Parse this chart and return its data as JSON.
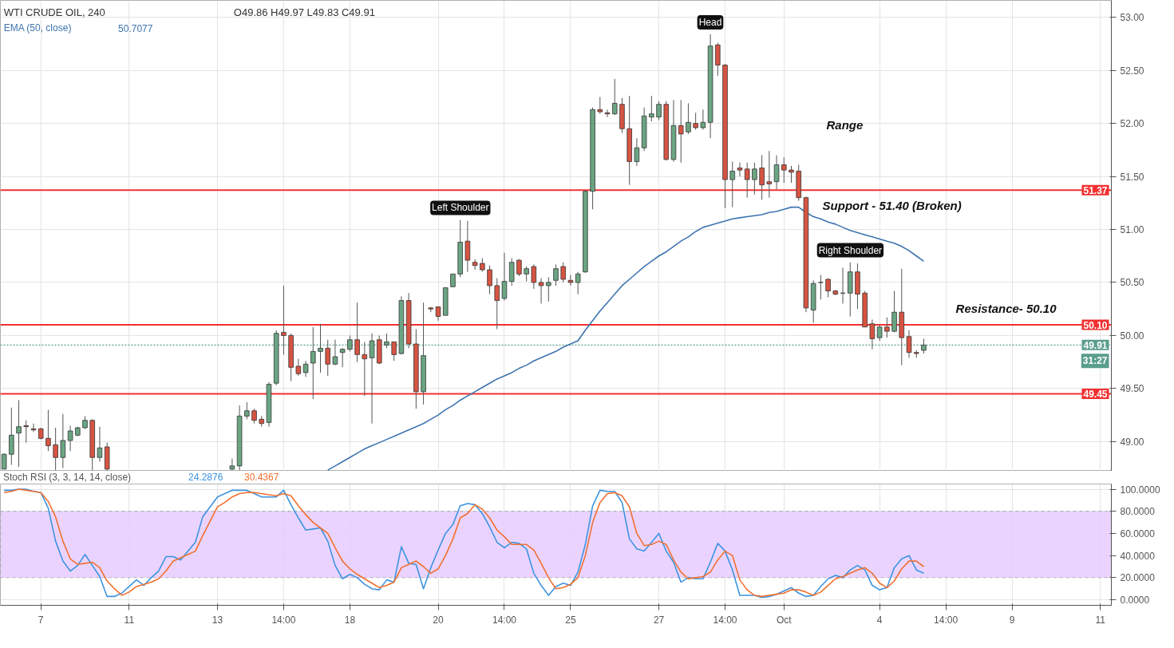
{
  "chart_data": [
    {
      "type": "candlestick",
      "title": "WTI CRUDE OIL, 240",
      "categories": [
        null,
        null,
        null,
        null,
        null,
        null,
        null,
        null,
        null,
        null,
        null,
        null,
        null,
        null,
        null,
        null,
        null,
        null,
        null,
        null,
        null,
        null,
        null,
        null,
        null,
        null,
        null,
        null,
        null,
        null,
        null,
        null,
        null,
        null,
        null,
        null,
        null,
        null,
        null,
        null,
        null,
        null,
        null,
        null,
        null,
        null,
        null,
        null,
        null,
        null,
        null,
        null,
        null,
        null,
        null,
        null,
        null,
        null,
        null,
        null,
        null,
        null,
        null,
        null,
        null,
        null,
        null,
        null,
        null,
        null,
        null,
        null,
        null,
        null,
        null,
        null,
        null,
        null,
        null,
        null,
        null,
        null,
        null,
        null,
        null,
        null,
        null,
        null,
        null,
        null,
        null,
        null,
        null,
        null,
        null,
        null,
        null,
        null,
        null,
        null,
        null,
        null,
        null,
        null,
        null,
        null,
        null,
        null,
        null,
        null,
        null,
        null,
        null,
        null,
        null,
        null,
        null,
        null,
        null,
        null,
        null,
        null,
        null,
        null,
        null,
        null,
        null,
        null,
        null,
        null,
        null,
        null,
        null,
        null,
        null,
        null,
        null,
        null,
        null,
        null,
        null,
        null,
        null,
        null,
        null,
        null,
        null,
        null,
        null,
        null,
        null
      ],
      "ohlc": [
        [
          48.74,
          48.89,
          48.74,
          48.88
        ],
        [
          48.88,
          49.32,
          48.78,
          49.06
        ],
        [
          49.08,
          49.39,
          48.76,
          49.14
        ],
        [
          49.15,
          49.2,
          48.99,
          49.14
        ],
        [
          49.12,
          49.17,
          49.09,
          49.11
        ],
        [
          49.12,
          49.13,
          49.02,
          49.03
        ],
        [
          49.03,
          49.3,
          48.91,
          48.96
        ],
        [
          48.97,
          49.13,
          48.73,
          48.85
        ],
        [
          48.85,
          49.26,
          48.75,
          49.01
        ],
        [
          49.01,
          49.15,
          48.91,
          49.1
        ],
        [
          49.06,
          49.14,
          49.05,
          49.13
        ],
        [
          49.13,
          49.24,
          49.12,
          49.2
        ],
        [
          49.2,
          49.21,
          48.73,
          48.85
        ],
        [
          48.85,
          49.14,
          48.81,
          48.94
        ],
        [
          48.95,
          48.99,
          48.73,
          48.74
        ],
        null,
        null,
        null,
        null,
        null,
        null,
        null,
        null,
        null,
        null,
        null,
        null,
        null,
        null,
        null,
        null,
        [
          48.74,
          48.84,
          48.73,
          48.77
        ],
        [
          48.77,
          49.34,
          48.73,
          49.24
        ],
        [
          49.24,
          49.37,
          49.21,
          49.29
        ],
        [
          49.29,
          49.31,
          49.17,
          49.2
        ],
        [
          49.21,
          49.24,
          49.14,
          49.17
        ],
        [
          49.18,
          49.56,
          49.14,
          49.54
        ],
        [
          49.55,
          50.05,
          49.53,
          50.02
        ],
        [
          50.03,
          50.47,
          49.82,
          50.0
        ],
        [
          50.0,
          50.02,
          49.57,
          49.7
        ],
        [
          49.71,
          49.78,
          49.62,
          49.64
        ],
        [
          49.65,
          49.76,
          49.61,
          49.73
        ],
        [
          49.74,
          50.08,
          49.4,
          49.85
        ],
        [
          49.85,
          50.11,
          49.65,
          49.88
        ],
        [
          49.88,
          49.96,
          49.62,
          49.73
        ],
        [
          49.73,
          49.96,
          49.72,
          49.8
        ],
        [
          49.84,
          49.88,
          49.7,
          49.87
        ],
        [
          49.87,
          50.0,
          49.85,
          49.96
        ],
        [
          49.96,
          50.31,
          49.75,
          49.82
        ],
        [
          49.82,
          49.94,
          49.43,
          49.78
        ],
        [
          49.79,
          50.02,
          49.17,
          49.95
        ],
        [
          49.96,
          50.0,
          49.73,
          49.74
        ],
        [
          49.91,
          50.02,
          49.88,
          49.94
        ],
        [
          49.94,
          49.94,
          49.76,
          49.82
        ],
        [
          49.83,
          50.37,
          49.82,
          50.33
        ],
        [
          50.33,
          50.4,
          49.88,
          49.92
        ],
        [
          49.92,
          50.06,
          49.31,
          49.47
        ],
        [
          49.47,
          50.31,
          49.35,
          49.81
        ],
        [
          50.26,
          50.27,
          50.22,
          50.25
        ],
        [
          50.27,
          50.27,
          50.14,
          50.18
        ],
        [
          50.19,
          50.45,
          50.19,
          50.45
        ],
        [
          50.46,
          50.58,
          50.46,
          50.58
        ],
        [
          50.58,
          51.09,
          50.55,
          50.88
        ],
        [
          50.89,
          51.08,
          50.6,
          50.71
        ],
        [
          50.69,
          50.72,
          50.62,
          50.66
        ],
        [
          50.68,
          50.73,
          50.6,
          50.62
        ],
        [
          50.62,
          50.66,
          50.39,
          50.47
        ],
        [
          50.47,
          50.54,
          50.06,
          50.33
        ],
        [
          50.35,
          50.78,
          50.33,
          50.51
        ],
        [
          50.51,
          50.73,
          50.47,
          50.69
        ],
        [
          50.71,
          50.72,
          50.56,
          50.58
        ],
        [
          50.58,
          50.65,
          50.51,
          50.63
        ],
        [
          50.65,
          50.67,
          50.44,
          50.5
        ],
        [
          50.5,
          50.54,
          50.3,
          50.47
        ],
        [
          50.47,
          50.55,
          50.32,
          50.5
        ],
        [
          50.52,
          50.67,
          50.47,
          50.63
        ],
        [
          50.65,
          50.69,
          50.5,
          50.53
        ],
        [
          50.52,
          50.57,
          50.47,
          50.5
        ],
        [
          50.5,
          50.6,
          50.39,
          50.58
        ],
        [
          50.6,
          51.37,
          50.59,
          51.36
        ],
        [
          51.36,
          52.15,
          51.19,
          52.13
        ],
        [
          52.13,
          52.25,
          52.09,
          52.11
        ],
        [
          52.1,
          52.13,
          52.06,
          52.09
        ],
        [
          52.09,
          52.42,
          52.08,
          52.19
        ],
        [
          52.18,
          52.24,
          51.91,
          51.95
        ],
        [
          51.95,
          52.26,
          51.42,
          51.64
        ],
        [
          51.64,
          51.86,
          51.6,
          51.77
        ],
        [
          51.77,
          52.15,
          51.74,
          52.07
        ],
        [
          52.06,
          52.26,
          52.02,
          52.09
        ],
        [
          52.06,
          52.21,
          52.03,
          52.18
        ],
        [
          52.18,
          52.21,
          51.65,
          51.66
        ],
        [
          51.66,
          52.22,
          51.64,
          51.98
        ],
        [
          51.98,
          52.22,
          51.63,
          51.9
        ],
        [
          51.92,
          52.19,
          51.9,
          52.01
        ],
        [
          52.0,
          52.1,
          51.94,
          51.96
        ],
        [
          51.96,
          52.13,
          51.94,
          52.01
        ],
        [
          52.01,
          52.84,
          51.86,
          52.73
        ],
        [
          52.74,
          52.76,
          52.45,
          52.55
        ],
        [
          52.55,
          52.56,
          51.2,
          51.47
        ],
        [
          51.47,
          51.64,
          51.21,
          51.55
        ],
        [
          51.58,
          51.63,
          51.5,
          51.56
        ],
        [
          51.57,
          51.63,
          51.3,
          51.47
        ],
        [
          51.47,
          51.63,
          51.33,
          51.57
        ],
        [
          51.58,
          51.7,
          51.28,
          51.42
        ],
        [
          51.45,
          51.74,
          51.3,
          51.43
        ],
        [
          51.45,
          51.7,
          51.38,
          51.61
        ],
        [
          51.61,
          51.68,
          51.44,
          51.56
        ],
        [
          51.56,
          51.6,
          51.44,
          51.54
        ],
        [
          51.55,
          51.61,
          51.27,
          51.3
        ],
        [
          51.3,
          51.31,
          50.22,
          50.26
        ],
        [
          50.24,
          50.52,
          50.12,
          50.49
        ],
        [
          50.5,
          50.57,
          50.34,
          50.5
        ],
        [
          50.53,
          50.54,
          50.36,
          50.42
        ],
        [
          50.42,
          50.43,
          50.38,
          50.39
        ],
        [
          50.4,
          50.64,
          50.3,
          50.4
        ],
        [
          50.4,
          50.69,
          50.18,
          50.6
        ],
        [
          50.6,
          50.68,
          50.25,
          50.39
        ],
        [
          50.4,
          50.42,
          50.08,
          50.08
        ],
        [
          50.11,
          50.15,
          49.87,
          49.97
        ],
        [
          49.98,
          50.1,
          49.95,
          50.08
        ],
        [
          50.08,
          50.17,
          49.98,
          50.04
        ],
        [
          50.04,
          50.42,
          50.03,
          50.22
        ],
        [
          50.22,
          50.63,
          49.72,
          49.98
        ],
        [
          49.99,
          50.05,
          49.79,
          49.84
        ],
        [
          49.84,
          49.86,
          49.79,
          49.83
        ],
        [
          49.86,
          49.97,
          49.83,
          49.91
        ],
        null,
        null,
        null,
        null,
        null,
        null,
        null,
        null,
        null,
        null,
        null,
        null,
        null,
        null,
        null,
        null,
        null,
        null,
        null,
        null,
        null,
        null,
        null,
        null,
        null
      ],
      "series": [
        {
          "type": "line",
          "name": "EMA (50, close)",
          "color": "#3d74b0",
          "values": [
            null,
            null,
            null,
            null,
            null,
            null,
            null,
            null,
            null,
            null,
            null,
            null,
            null,
            null,
            null,
            null,
            null,
            null,
            null,
            null,
            null,
            null,
            null,
            null,
            null,
            null,
            null,
            null,
            null,
            null,
            null,
            null,
            null,
            null,
            null,
            null,
            null,
            null,
            null,
            null,
            null,
            null,
            null,
            null,
            48.73,
            48.77,
            48.81,
            48.85,
            48.89,
            48.93,
            48.96,
            48.99,
            49.02,
            49.05,
            49.08,
            49.11,
            49.14,
            49.17,
            49.21,
            49.25,
            49.3,
            49.34,
            49.39,
            49.43,
            49.47,
            49.51,
            49.55,
            49.59,
            49.62,
            49.65,
            49.69,
            49.72,
            49.76,
            49.79,
            49.82,
            49.85,
            49.89,
            49.92,
            49.95,
            50.05,
            50.14,
            50.23,
            50.31,
            50.39,
            50.47,
            50.53,
            50.59,
            50.65,
            50.7,
            50.75,
            50.79,
            50.84,
            50.89,
            50.93,
            50.98,
            51.02,
            51.04,
            51.06,
            51.08,
            51.1,
            51.11,
            51.12,
            51.13,
            51.14,
            51.16,
            51.17,
            51.19,
            51.21,
            51.21,
            51.16,
            51.12,
            51.1,
            51.07,
            51.05,
            51.02,
            50.99,
            50.97,
            50.95,
            50.93,
            50.91,
            50.89,
            50.87,
            50.84,
            50.8,
            50.75,
            50.7,
            null,
            null,
            null,
            null,
            null,
            null,
            null,
            null,
            null,
            null,
            null,
            null,
            null,
            null,
            null,
            null,
            null,
            null,
            null,
            null,
            null,
            null,
            null,
            null,
            null
          ]
        }
      ],
      "ylim": [
        48.72,
        53.16
      ],
      "yticks": [
        {
          "value": 49,
          "label": "49.00"
        },
        {
          "value": 49.5,
          "label": "49.50"
        },
        {
          "value": 50,
          "label": "50.00"
        },
        {
          "value": 50.5,
          "label": "50.50"
        },
        {
          "value": 51,
          "label": "51.00"
        },
        {
          "value": 51.5,
          "label": "51.50"
        },
        {
          "value": 52,
          "label": "52.00"
        },
        {
          "value": 52.5,
          "label": "52.50"
        },
        {
          "value": 53,
          "label": "53.00"
        }
      ],
      "tick_labels": "y",
      "grid": true,
      "legend": false,
      "ref_lines": [
        {
          "axis": "y",
          "value": 51.37,
          "label": "51.37",
          "color": "#f23030",
          "line_style": "solid"
        },
        {
          "axis": "y",
          "value": 50.1,
          "label": "50.10",
          "color": "#f23030",
          "line_style": "solid"
        },
        {
          "axis": "y",
          "value": 49.45,
          "label": "49.45",
          "color": "#f23030",
          "line_style": "solid"
        },
        {
          "axis": "y",
          "value": 49.91,
          "label": "49.91",
          "color": "#5a9e8c",
          "line_style": "dotted"
        }
      ],
      "annotations": [
        "Head",
        "Left Shoulder",
        "Right Shoulder",
        "Range",
        "Support - 51.40 (Broken)",
        "Resistance- 50.10",
        "O49.86 H49.97 L49.83 C49.91",
        "50.7077",
        "31:27"
      ]
    },
    {
      "type": "line",
      "title": "Stoch RSI (3, 3, 14, 14, close)",
      "categories": [
        null,
        null,
        null,
        null,
        null,
        "7",
        null,
        null,
        null,
        null,
        null,
        null,
        null,
        null,
        null,
        null,
        null,
        "11",
        null,
        null,
        null,
        null,
        null,
        null,
        null,
        null,
        null,
        null,
        null,
        "13",
        null,
        null,
        null,
        null,
        null,
        null,
        null,
        null,
        "14:00",
        null,
        null,
        null,
        null,
        null,
        null,
        null,
        null,
        "18",
        null,
        null,
        null,
        null,
        null,
        null,
        null,
        null,
        null,
        null,
        null,
        "20",
        null,
        null,
        null,
        null,
        null,
        null,
        null,
        null,
        "14:00",
        null,
        null,
        null,
        null,
        null,
        null,
        null,
        null,
        "25",
        null,
        null,
        null,
        null,
        null,
        null,
        null,
        null,
        null,
        null,
        null,
        "27",
        null,
        null,
        null,
        null,
        null,
        null,
        null,
        null,
        "14:00",
        null,
        null,
        null,
        null,
        null,
        null,
        null,
        "Oct",
        null,
        null,
        null,
        null,
        null,
        null,
        null,
        null,
        null,
        null,
        null,
        null,
        "4",
        null,
        null,
        null,
        null,
        null,
        null,
        null,
        null,
        "14:00",
        null,
        null,
        null,
        null,
        null,
        null,
        null,
        null,
        "9",
        null,
        null,
        null,
        null,
        null,
        null,
        null,
        null,
        null,
        null,
        null,
        "11",
        null
      ],
      "series": [
        {
          "color": "#3d94e0",
          "values": [
            99,
            99,
            100,
            100,
            98,
            97,
            83,
            53,
            35,
            26,
            31,
            41,
            31,
            21,
            3,
            3,
            6,
            12,
            18,
            13,
            20,
            26,
            39,
            39,
            36,
            44,
            52,
            75,
            84,
            93,
            96,
            99,
            99,
            99,
            96,
            93,
            93,
            93,
            99,
            86,
            74,
            63,
            64,
            65,
            53,
            31,
            19,
            23,
            20,
            14,
            10,
            9,
            18,
            16,
            48,
            33,
            32,
            10,
            29,
            45,
            60,
            68,
            85,
            87,
            86,
            78,
            66,
            52,
            47,
            52,
            51,
            46,
            24,
            13,
            4,
            12,
            15,
            13,
            25,
            50,
            85,
            99,
            98,
            98,
            88,
            55,
            46,
            44,
            52,
            60,
            44,
            34,
            16,
            20,
            19,
            19,
            34,
            51,
            44,
            27,
            4,
            4,
            4,
            2,
            3,
            5,
            8,
            11,
            6,
            3,
            4,
            12,
            19,
            22,
            20,
            27,
            31,
            27,
            13,
            9,
            11,
            29,
            37,
            40,
            27,
            24,
            null,
            null,
            null,
            null,
            null,
            null,
            null,
            null,
            null,
            null,
            null,
            null,
            null,
            null,
            null,
            null,
            null,
            null,
            null,
            null,
            null,
            null,
            null,
            null,
            null
          ]
        },
        {
          "color": "#f07030",
          "values": [
            97,
            98,
            100,
            99,
            98,
            97,
            89,
            75,
            53,
            37,
            32,
            33,
            34,
            29,
            17,
            10,
            4,
            7,
            12,
            14,
            16,
            19,
            26,
            35,
            38,
            41,
            44,
            58,
            71,
            84,
            88,
            93,
            96,
            97,
            97,
            96,
            95,
            94,
            96,
            94,
            85,
            77,
            70,
            65,
            60,
            47,
            35,
            28,
            23,
            19,
            15,
            11,
            13,
            16,
            29,
            32,
            35,
            30,
            24,
            28,
            40,
            55,
            74,
            78,
            86,
            82,
            74,
            63,
            57,
            50,
            50,
            50,
            45,
            33,
            20,
            10,
            11,
            14,
            20,
            40,
            70,
            88,
            96,
            97,
            94,
            84,
            60,
            49,
            50,
            53,
            50,
            36,
            25,
            19,
            20,
            21,
            25,
            36,
            44,
            40,
            18,
            9,
            4,
            3,
            4,
            5,
            6,
            9,
            9,
            7,
            4,
            7,
            13,
            19,
            21,
            24,
            27,
            29,
            24,
            15,
            11,
            17,
            28,
            35,
            35,
            30,
            null,
            null,
            null,
            null,
            null,
            null,
            null,
            null,
            null,
            null,
            null,
            null,
            null,
            null,
            null,
            null,
            null,
            null,
            null,
            null,
            null,
            null,
            null,
            null,
            null
          ]
        }
      ],
      "ylim": [
        -5,
        104.7
      ],
      "yticks": [
        {
          "value": 0,
          "label": "0.0000"
        },
        {
          "value": 20,
          "label": "20.0000"
        },
        {
          "value": 40,
          "label": "40.0000"
        },
        {
          "value": 60,
          "label": "60.0000"
        },
        {
          "value": 80,
          "label": "80.0000"
        },
        {
          "value": 100,
          "label": "100.0000"
        }
      ],
      "grid": true,
      "legend": false,
      "bands": [
        {
          "axis": "y",
          "from": 20,
          "to": 80,
          "color": "#e6ccff"
        }
      ],
      "annotations": [
        "24.2876",
        "30.4367"
      ]
    }
  ]
}
